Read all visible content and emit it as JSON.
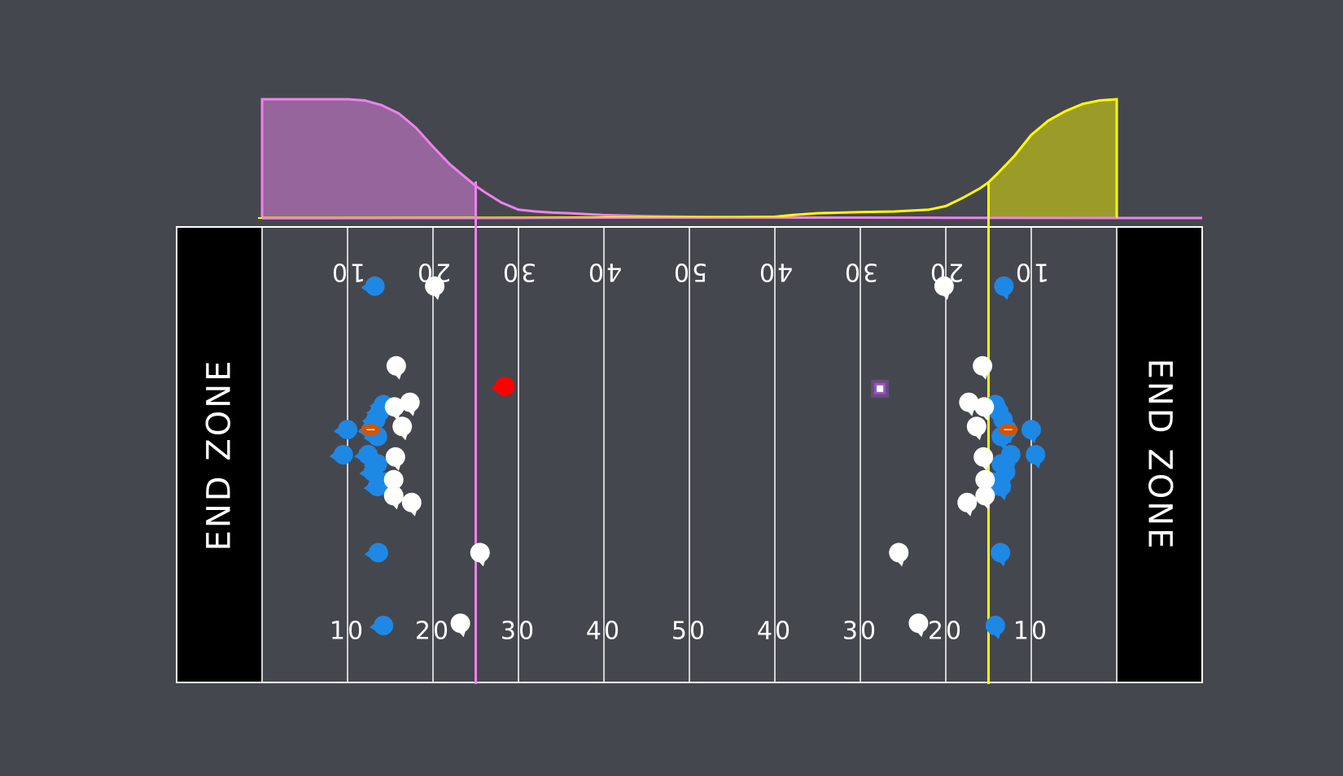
{
  "colors": {
    "background": "#45474e",
    "field": "#45474e",
    "lines": "#ffffff",
    "endzone": "#000000",
    "offense": "#1e88e5",
    "defense": "#ffffff",
    "ball": "#d35400",
    "left_scrimmage": "#ee82ee",
    "right_scrimmage": "#ffff00",
    "left_density_fill": "#9b67a0",
    "right_density_fill": "#a0a026",
    "highlight_player": "#ff0000",
    "target_marker": "#a855d8"
  },
  "endzones": {
    "left_label": "END ZONE",
    "right_label": "END ZONE"
  },
  "yard_labels_bottom": [
    "10",
    "20",
    "30",
    "40",
    "50",
    "40",
    "30",
    "20",
    "10"
  ],
  "yard_labels_top": [
    "10",
    "20",
    "30",
    "40",
    "50",
    "40",
    "30",
    "20",
    "10"
  ],
  "scrimmage_lines": {
    "left_yard": 25,
    "right_yard": 85
  },
  "density": {
    "left": [
      [
        10,
        1.0
      ],
      [
        12,
        0.99
      ],
      [
        14,
        0.95
      ],
      [
        16,
        0.88
      ],
      [
        18,
        0.76
      ],
      [
        20,
        0.6
      ],
      [
        22,
        0.45
      ],
      [
        24,
        0.33
      ],
      [
        25,
        0.27
      ],
      [
        26,
        0.22
      ],
      [
        28,
        0.13
      ],
      [
        30,
        0.07
      ],
      [
        32,
        0.055
      ],
      [
        34,
        0.045
      ],
      [
        36,
        0.04
      ],
      [
        40,
        0.025
      ],
      [
        45,
        0.015
      ],
      [
        50,
        0.01
      ],
      [
        60,
        0.005
      ],
      [
        70,
        0.003
      ],
      [
        80,
        0.002
      ],
      [
        90,
        0.001
      ],
      [
        110,
        0.0
      ]
    ],
    "right": [
      [
        0,
        0.0
      ],
      [
        20,
        0.001
      ],
      [
        30,
        0.002
      ],
      [
        40,
        0.003
      ],
      [
        50,
        0.005
      ],
      [
        60,
        0.01
      ],
      [
        62,
        0.025
      ],
      [
        65,
        0.04
      ],
      [
        70,
        0.05
      ],
      [
        74,
        0.055
      ],
      [
        78,
        0.07
      ],
      [
        80,
        0.1
      ],
      [
        82,
        0.17
      ],
      [
        84,
        0.25
      ],
      [
        85,
        0.3
      ],
      [
        86,
        0.37
      ],
      [
        88,
        0.52
      ],
      [
        90,
        0.7
      ],
      [
        92,
        0.82
      ],
      [
        94,
        0.9
      ],
      [
        96,
        0.96
      ],
      [
        98,
        0.99
      ],
      [
        100,
        1.0
      ]
    ]
  },
  "players": {
    "offense": [
      [
        13.2,
        13.0
      ],
      [
        14.2,
        39.0
      ],
      [
        13.8,
        40.5
      ],
      [
        13.3,
        42.3
      ],
      [
        10.0,
        44.5
      ],
      [
        12.8,
        44.5
      ],
      [
        13.5,
        46.0
      ],
      [
        9.5,
        50.0
      ],
      [
        12.4,
        50.0
      ],
      [
        13.5,
        52.0
      ],
      [
        13.0,
        53.8
      ],
      [
        14.5,
        56.0
      ],
      [
        13.5,
        57.0
      ],
      [
        13.6,
        71.5
      ],
      [
        14.2,
        87.5
      ],
      [
        86.8,
        13.0
      ],
      [
        85.8,
        39.0
      ],
      [
        86.2,
        40.5
      ],
      [
        86.7,
        42.3
      ],
      [
        90.0,
        44.5
      ],
      [
        87.2,
        44.5
      ],
      [
        86.5,
        46.0
      ],
      [
        90.5,
        50.0
      ],
      [
        87.6,
        50.0
      ],
      [
        86.5,
        52.0
      ],
      [
        87.0,
        53.8
      ],
      [
        85.5,
        56.0
      ],
      [
        86.5,
        57.0
      ],
      [
        86.4,
        71.5
      ],
      [
        85.8,
        87.5
      ]
    ],
    "defense": [
      [
        20.2,
        13.0
      ],
      [
        15.7,
        30.5
      ],
      [
        17.3,
        38.5
      ],
      [
        15.5,
        39.5
      ],
      [
        16.4,
        43.8
      ],
      [
        15.6,
        50.5
      ],
      [
        15.4,
        55.5
      ],
      [
        15.4,
        59.0
      ],
      [
        17.5,
        60.5
      ],
      [
        25.5,
        71.5
      ],
      [
        23.2,
        87.0
      ],
      [
        79.8,
        13.0
      ],
      [
        84.3,
        30.5
      ],
      [
        82.7,
        38.5
      ],
      [
        84.5,
        39.5
      ],
      [
        83.6,
        43.8
      ],
      [
        84.4,
        50.5
      ],
      [
        84.6,
        55.5
      ],
      [
        84.6,
        59.0
      ],
      [
        82.5,
        60.5
      ],
      [
        74.5,
        71.5
      ],
      [
        76.8,
        87.0
      ]
    ],
    "highlight": [
      [
        28.4,
        35.0
      ]
    ],
    "ball": [
      [
        12.7,
        44.5
      ],
      [
        87.3,
        44.5
      ]
    ],
    "target": [
      [
        72.3,
        35.5
      ]
    ]
  }
}
